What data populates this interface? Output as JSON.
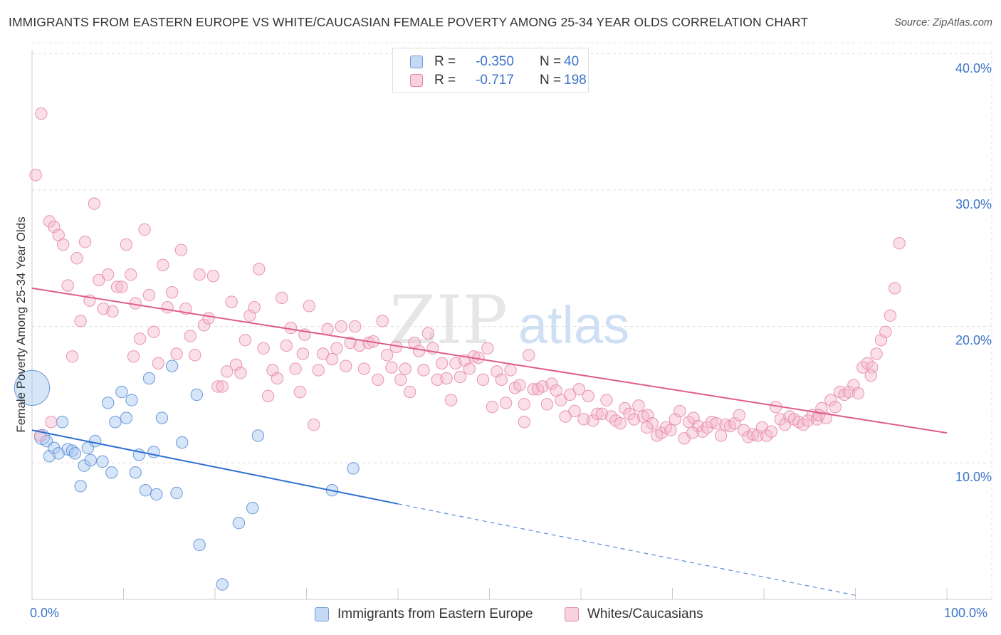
{
  "title": "IMMIGRANTS FROM EASTERN EUROPE VS WHITE/CAUCASIAN FEMALE POVERTY AMONG 25-34 YEAR OLDS CORRELATION CHART",
  "source": "Source: ZipAtlas.com",
  "watermark": {
    "zip": "ZIP",
    "atlas": "atlas"
  },
  "legend_top": [
    {
      "r_label": "R =",
      "r_value": "-0.350",
      "n_label": "N =",
      "n_value": "40",
      "color": "#a7c6ef"
    },
    {
      "r_label": "R =",
      "r_value": "-0.717",
      "n_label": "N =",
      "n_value": "198",
      "color": "#f5b8cb"
    }
  ],
  "chart_data": {
    "type": "scatter",
    "title": "IMMIGRANTS FROM EASTERN EUROPE VS WHITE/CAUCASIAN FEMALE POVERTY AMONG 25-34 YEAR OLDS CORRELATION CHART",
    "xlabel": "",
    "ylabel": "Female Poverty Among 25-34 Year Olds",
    "xlim": [
      0,
      100
    ],
    "ylim": [
      0,
      41
    ],
    "x_tick_labels": [
      "0.0%",
      "100.0%"
    ],
    "y_ticks": [
      10,
      20,
      30,
      40
    ],
    "y_tick_labels": [
      "10.0%",
      "20.0%",
      "30.0%",
      "40.0%"
    ],
    "grid": true,
    "legend_position": "bottom",
    "series": [
      {
        "name": "Immigrants from Eastern Europe",
        "color": "#a7c6ef",
        "edge_color": "#5b8fd6",
        "line_color": "#2e6fd1",
        "trend": {
          "x0": 0,
          "y0": 12.4,
          "x1": 40,
          "y1": 7.0,
          "dashed_to_x": 90,
          "dashed_to_y": 0.3
        },
        "points": [
          [
            0,
            15.5,
            3
          ],
          [
            1.1,
            11.9,
            1.3
          ],
          [
            1.6,
            11.6,
            1
          ],
          [
            1.9,
            10.5,
            1
          ],
          [
            2.4,
            11.1,
            1
          ],
          [
            2.9,
            10.7,
            1
          ],
          [
            3.3,
            13.0,
            1
          ],
          [
            3.9,
            11.0,
            1
          ],
          [
            4.4,
            10.9,
            1
          ],
          [
            4.7,
            10.7,
            1
          ],
          [
            5.3,
            8.3,
            1
          ],
          [
            5.7,
            9.8,
            1
          ],
          [
            6.1,
            11.1,
            1
          ],
          [
            6.4,
            10.2,
            1
          ],
          [
            6.9,
            11.6,
            1
          ],
          [
            7.7,
            10.1,
            1
          ],
          [
            8.3,
            14.4,
            1
          ],
          [
            8.7,
            9.3,
            1
          ],
          [
            9.1,
            13.0,
            1
          ],
          [
            9.8,
            15.2,
            1
          ],
          [
            10.3,
            13.3,
            1
          ],
          [
            10.9,
            14.6,
            1
          ],
          [
            11.3,
            9.3,
            1
          ],
          [
            11.7,
            10.6,
            1
          ],
          [
            12.4,
            8.0,
            1
          ],
          [
            12.8,
            16.2,
            1
          ],
          [
            13.3,
            10.8,
            1
          ],
          [
            13.6,
            7.7,
            1
          ],
          [
            14.2,
            13.3,
            1
          ],
          [
            15.3,
            17.1,
            1
          ],
          [
            15.8,
            7.8,
            1
          ],
          [
            16.4,
            11.5,
            1
          ],
          [
            18.3,
            4.0,
            1
          ],
          [
            18.0,
            15.0,
            1
          ],
          [
            20.8,
            1.1,
            1
          ],
          [
            22.6,
            5.6,
            1
          ],
          [
            24.1,
            6.7,
            1
          ],
          [
            24.7,
            12.0,
            1
          ],
          [
            32.8,
            8.0,
            1
          ],
          [
            35.1,
            9.6,
            1
          ]
        ]
      },
      {
        "name": "Whites/Caucasians",
        "color": "#f5b8cb",
        "edge_color": "#e68aa7",
        "line_color": "#df5d8a",
        "trend": {
          "x0": 0,
          "y0": 22.8,
          "x1": 100,
          "y1": 12.2
        },
        "points": [
          [
            0.4,
            31.1
          ],
          [
            1.0,
            35.6
          ],
          [
            1.9,
            27.7
          ],
          [
            2.4,
            27.3
          ],
          [
            2.9,
            26.7
          ],
          [
            3.4,
            26.0
          ],
          [
            3.9,
            23.0
          ],
          [
            4.4,
            17.8
          ],
          [
            4.9,
            25.0
          ],
          [
            5.3,
            20.4
          ],
          [
            5.8,
            26.2
          ],
          [
            6.3,
            21.9
          ],
          [
            6.8,
            29.0
          ],
          [
            7.3,
            23.4
          ],
          [
            7.8,
            21.3
          ],
          [
            8.3,
            23.8
          ],
          [
            8.8,
            21.1
          ],
          [
            9.3,
            22.9
          ],
          [
            9.8,
            22.9
          ],
          [
            10.3,
            26.0
          ],
          [
            10.8,
            23.8
          ],
          [
            11.3,
            21.7
          ],
          [
            11.8,
            19.1
          ],
          [
            12.3,
            27.1
          ],
          [
            12.8,
            22.3
          ],
          [
            13.3,
            19.6
          ],
          [
            13.8,
            17.3
          ],
          [
            14.3,
            24.5
          ],
          [
            14.8,
            21.4
          ],
          [
            15.3,
            22.5
          ],
          [
            15.8,
            18.0
          ],
          [
            16.3,
            25.6
          ],
          [
            16.8,
            21.3
          ],
          [
            17.3,
            19.3
          ],
          [
            17.8,
            17.9
          ],
          [
            18.3,
            23.8
          ],
          [
            18.8,
            20.1
          ],
          [
            19.3,
            20.6
          ],
          [
            19.8,
            23.7
          ],
          [
            20.3,
            15.6
          ],
          [
            20.8,
            15.6
          ],
          [
            21.3,
            16.7
          ],
          [
            21.8,
            21.8
          ],
          [
            22.3,
            17.2
          ],
          [
            22.8,
            16.6
          ],
          [
            23.3,
            19.0
          ],
          [
            23.8,
            20.8
          ],
          [
            24.3,
            21.4
          ],
          [
            24.8,
            24.2
          ],
          [
            25.3,
            18.4
          ],
          [
            25.8,
            14.9
          ],
          [
            26.3,
            16.8
          ],
          [
            26.8,
            16.2
          ],
          [
            27.3,
            22.1
          ],
          [
            27.8,
            18.6
          ],
          [
            28.3,
            19.9
          ],
          [
            28.8,
            16.9
          ],
          [
            29.3,
            15.2
          ],
          [
            29.8,
            19.4
          ],
          [
            30.3,
            21.5
          ],
          [
            30.8,
            12.8
          ],
          [
            31.3,
            16.8
          ],
          [
            31.8,
            18.0
          ],
          [
            32.3,
            19.8
          ],
          [
            32.8,
            17.6
          ],
          [
            33.3,
            18.4
          ],
          [
            33.8,
            20.0
          ],
          [
            34.3,
            17.1
          ],
          [
            34.8,
            18.8
          ],
          [
            35.3,
            20.0
          ],
          [
            35.8,
            18.6
          ],
          [
            36.3,
            16.9
          ],
          [
            36.8,
            18.8
          ],
          [
            37.3,
            18.9
          ],
          [
            37.8,
            16.1
          ],
          [
            38.3,
            20.4
          ],
          [
            38.8,
            17.9
          ],
          [
            39.3,
            17.0
          ],
          [
            39.8,
            18.5
          ],
          [
            40.3,
            16.1
          ],
          [
            40.8,
            16.9
          ],
          [
            41.3,
            15.2
          ],
          [
            41.8,
            18.8
          ],
          [
            42.3,
            18.2
          ],
          [
            42.8,
            16.8
          ],
          [
            43.3,
            19.5
          ],
          [
            43.8,
            18.4
          ],
          [
            44.3,
            16.1
          ],
          [
            44.8,
            17.3
          ],
          [
            45.3,
            16.2
          ],
          [
            45.8,
            14.6
          ],
          [
            46.3,
            17.3
          ],
          [
            46.8,
            16.3
          ],
          [
            47.3,
            17.5
          ],
          [
            47.8,
            16.9
          ],
          [
            48.3,
            17.8
          ],
          [
            48.8,
            17.7
          ],
          [
            49.3,
            16.1
          ],
          [
            49.8,
            18.4
          ],
          [
            50.3,
            14.1
          ],
          [
            50.8,
            16.7
          ],
          [
            51.3,
            16.1
          ],
          [
            51.8,
            14.4
          ],
          [
            52.3,
            16.8
          ],
          [
            52.8,
            15.5
          ],
          [
            53.3,
            15.7
          ],
          [
            53.8,
            14.3
          ],
          [
            54.3,
            17.9
          ],
          [
            54.8,
            15.4
          ],
          [
            55.3,
            15.4
          ],
          [
            55.8,
            15.6
          ],
          [
            56.3,
            14.3
          ],
          [
            56.8,
            15.8
          ],
          [
            57.3,
            15.3
          ],
          [
            57.8,
            14.6
          ],
          [
            58.3,
            13.4
          ],
          [
            58.8,
            15.0
          ],
          [
            59.3,
            13.8
          ],
          [
            59.8,
            15.4
          ],
          [
            60.3,
            13.2
          ],
          [
            60.8,
            14.9
          ],
          [
            61.3,
            13.1
          ],
          [
            61.8,
            13.6
          ],
          [
            62.3,
            13.6
          ],
          [
            62.8,
            14.6
          ],
          [
            63.3,
            13.4
          ],
          [
            63.8,
            13.1
          ],
          [
            64.3,
            12.9
          ],
          [
            64.8,
            14.0
          ],
          [
            65.3,
            13.6
          ],
          [
            65.8,
            13.2
          ],
          [
            66.3,
            14.2
          ],
          [
            66.8,
            13.4
          ],
          [
            67.3,
            13.5
          ],
          [
            67.8,
            12.9
          ],
          [
            68.3,
            12.0
          ],
          [
            68.8,
            12.2
          ],
          [
            69.3,
            12.6
          ],
          [
            69.8,
            12.4
          ],
          [
            70.3,
            13.2
          ],
          [
            70.8,
            13.8
          ],
          [
            71.3,
            11.8
          ],
          [
            71.8,
            13.0
          ],
          [
            72.3,
            13.3
          ],
          [
            72.8,
            12.7
          ],
          [
            73.3,
            12.3
          ],
          [
            73.8,
            12.6
          ],
          [
            74.3,
            13.0
          ],
          [
            74.8,
            12.9
          ],
          [
            75.3,
            12.0
          ],
          [
            75.8,
            12.8
          ],
          [
            76.3,
            12.7
          ],
          [
            76.8,
            12.9
          ],
          [
            77.3,
            13.5
          ],
          [
            77.8,
            12.4
          ],
          [
            78.3,
            11.9
          ],
          [
            78.8,
            12.1
          ],
          [
            79.3,
            12.0
          ],
          [
            79.8,
            12.6
          ],
          [
            80.3,
            12.0
          ],
          [
            80.8,
            12.3
          ],
          [
            81.3,
            14.1
          ],
          [
            81.8,
            13.2
          ],
          [
            82.3,
            12.8
          ],
          [
            82.8,
            13.4
          ],
          [
            83.3,
            13.2
          ],
          [
            83.8,
            13.0
          ],
          [
            84.3,
            12.8
          ],
          [
            84.8,
            13.1
          ],
          [
            85.3,
            13.5
          ],
          [
            85.8,
            13.2
          ],
          [
            86.3,
            14.0
          ],
          [
            86.8,
            13.3
          ],
          [
            87.3,
            14.6
          ],
          [
            87.8,
            14.1
          ],
          [
            88.3,
            15.2
          ],
          [
            88.8,
            15.0
          ],
          [
            89.3,
            15.2
          ],
          [
            89.8,
            15.7
          ],
          [
            90.3,
            15.1
          ],
          [
            90.8,
            17.0
          ],
          [
            91.3,
            17.3
          ],
          [
            91.8,
            17.0
          ],
          [
            92.3,
            18.0
          ],
          [
            92.8,
            19.0
          ],
          [
            93.3,
            19.6
          ],
          [
            93.8,
            20.8
          ],
          [
            94.3,
            22.8
          ],
          [
            94.8,
            26.1
          ],
          [
            0.9,
            12.0
          ],
          [
            2.1,
            13.0
          ],
          [
            11.1,
            17.8
          ],
          [
            29.6,
            18.0
          ],
          [
            53.8,
            13.0
          ],
          [
            72.2,
            12.2
          ],
          [
            86.0,
            13.5
          ],
          [
            67.2,
            12.6
          ],
          [
            91.7,
            16.4
          ]
        ]
      }
    ]
  },
  "legend_bottom": [
    {
      "label": "Immigrants from Eastern Europe",
      "color": "#a7c6ef"
    },
    {
      "label": "Whites/Caucasians",
      "color": "#f5b8cb"
    }
  ]
}
